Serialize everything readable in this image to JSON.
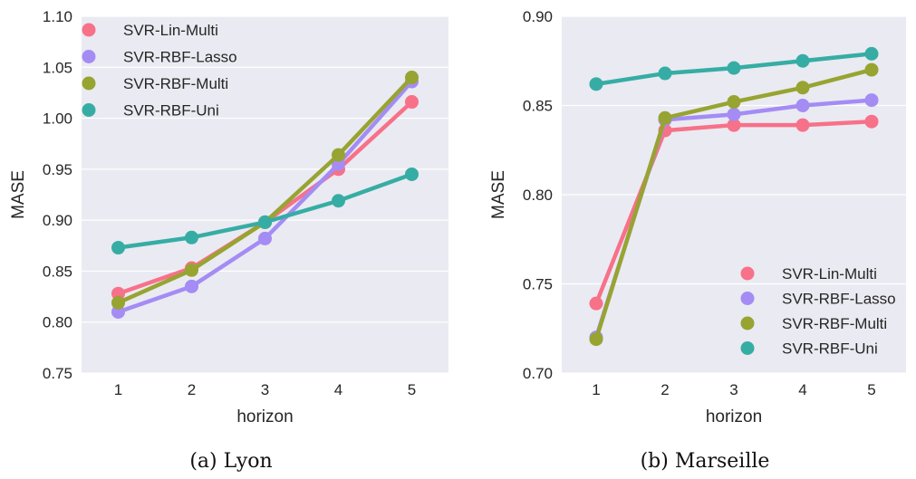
{
  "chart_data": [
    {
      "type": "line",
      "caption": "(a) Lyon",
      "xlabel": "horizon",
      "ylabel": "MASE",
      "x": [
        1,
        2,
        3,
        4,
        5
      ],
      "ylim": [
        0.75,
        1.1
      ],
      "yticks": [
        "0.75",
        "0.80",
        "0.85",
        "0.90",
        "0.95",
        "1.00",
        "1.05",
        "1.10"
      ],
      "grid": true,
      "legend_position": "top-left",
      "series": [
        {
          "name": "SVR-Lin-Multi",
          "color": "#f77189",
          "values": [
            0.828,
            0.853,
            0.898,
            0.95,
            1.016
          ]
        },
        {
          "name": "SVR-RBF-Lasso",
          "color": "#a48cf4",
          "values": [
            0.81,
            0.835,
            0.882,
            0.955,
            1.036
          ]
        },
        {
          "name": "SVR-RBF-Multi",
          "color": "#97a431",
          "values": [
            0.819,
            0.851,
            0.898,
            0.964,
            1.04
          ]
        },
        {
          "name": "SVR-RBF-Uni",
          "color": "#36ada4",
          "values": [
            0.873,
            0.883,
            0.898,
            0.919,
            0.945
          ]
        }
      ]
    },
    {
      "type": "line",
      "caption": "(b) Marseille",
      "xlabel": "horizon",
      "ylabel": "MASE",
      "x": [
        1,
        2,
        3,
        4,
        5
      ],
      "ylim": [
        0.7,
        0.9
      ],
      "yticks": [
        "0.70",
        "0.75",
        "0.80",
        "0.85",
        "0.90"
      ],
      "grid": true,
      "legend_position": "bottom-right",
      "series": [
        {
          "name": "SVR-Lin-Multi",
          "color": "#f77189",
          "values": [
            0.739,
            0.836,
            0.839,
            0.839,
            0.841
          ]
        },
        {
          "name": "SVR-RBF-Lasso",
          "color": "#a48cf4",
          "values": [
            0.72,
            0.842,
            0.845,
            0.85,
            0.853
          ]
        },
        {
          "name": "SVR-RBF-Multi",
          "color": "#97a431",
          "values": [
            0.719,
            0.843,
            0.852,
            0.86,
            0.87
          ]
        },
        {
          "name": "SVR-RBF-Uni",
          "color": "#36ada4",
          "values": [
            0.862,
            0.868,
            0.871,
            0.875,
            0.879
          ]
        }
      ]
    }
  ]
}
